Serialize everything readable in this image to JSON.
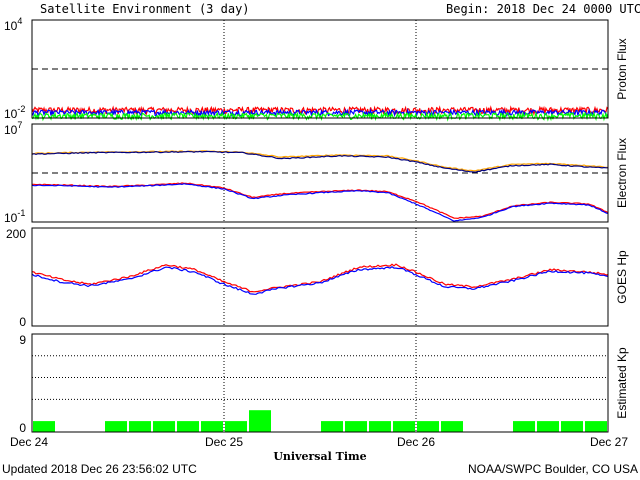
{
  "header": {
    "title": "Satellite Environment (3 day)",
    "begin": "Begin:  2018 Dec 24 0000 UTC"
  },
  "footer": {
    "updated": "Updated 2018 Dec 26 23:56:02 UTC",
    "credit": "NOAA/SWPC Boulder, CO USA",
    "xlabel": "Universal Time"
  },
  "colors": {
    "red": "#ff0000",
    "blue": "#0000ff",
    "green": "#00ff00",
    "orange": "#ffa500",
    "navy": "#000080",
    "grid": "#000000"
  },
  "chart_data": [
    {
      "type": "line",
      "ylabel": "Proton Flux",
      "scale": "log",
      "ylim_exp": [
        -2,
        4
      ],
      "y_ticks": [
        {
          "base": "10",
          "exp": "4"
        },
        {
          "base": "10",
          "exp": "-2"
        }
      ],
      "threshold": 10,
      "x_range_days": [
        0,
        3
      ],
      "series": [
        {
          "color": "red",
          "level": 0.031,
          "noise": 0.15
        },
        {
          "color": "blue",
          "level": 0.022,
          "noise": 0.12
        },
        {
          "color": "green",
          "level": 0.014,
          "noise": 0.14
        }
      ]
    },
    {
      "type": "line",
      "ylabel": "Electron Flux",
      "scale": "log",
      "ylim_exp": [
        -1,
        7
      ],
      "y_ticks": [
        {
          "base": "10",
          "exp": "7"
        },
        {
          "base": "10",
          "exp": "-1"
        }
      ],
      "threshold": 1000,
      "x_range_days": [
        0,
        3
      ],
      "series": [
        {
          "color": "orange",
          "x": [
            0,
            0.3,
            0.6,
            0.9,
            1.1,
            1.3,
            1.6,
            1.85,
            2.0,
            2.15,
            2.3,
            2.5,
            2.7,
            2.9,
            3.0
          ],
          "y": [
            40000,
            50000,
            55000,
            60000,
            50000,
            20000,
            30000,
            25000,
            10000,
            3000,
            1500,
            5000,
            6000,
            4000,
            3000
          ]
        },
        {
          "color": "navy",
          "x": [
            0,
            0.3,
            0.6,
            0.9,
            1.1,
            1.3,
            1.6,
            1.85,
            2.0,
            2.15,
            2.3,
            2.5,
            2.7,
            2.9,
            3.0
          ],
          "y": [
            35000,
            45000,
            50000,
            55000,
            45000,
            15000,
            25000,
            20000,
            8000,
            2500,
            1200,
            4000,
            5000,
            3000,
            2500
          ]
        },
        {
          "color": "red",
          "x": [
            0,
            0.2,
            0.4,
            0.6,
            0.8,
            1.0,
            1.15,
            1.3,
            1.5,
            1.7,
            1.85,
            2.0,
            2.1,
            2.2,
            2.35,
            2.5,
            2.7,
            2.9,
            3.0
          ],
          "y": [
            120,
            100,
            80,
            100,
            150,
            60,
            10,
            20,
            30,
            40,
            30,
            5,
            1,
            0.2,
            0.3,
            2,
            4,
            3,
            0.6
          ]
        },
        {
          "color": "blue",
          "x": [
            0,
            0.2,
            0.4,
            0.6,
            0.8,
            1.0,
            1.15,
            1.3,
            1.5,
            1.7,
            1.85,
            2.0,
            2.1,
            2.2,
            2.35,
            2.5,
            2.7,
            2.9,
            3.0
          ],
          "y": [
            100,
            90,
            70,
            90,
            130,
            50,
            8,
            15,
            25,
            35,
            25,
            3,
            0.6,
            0.12,
            0.25,
            1.8,
            3.5,
            2.5,
            0.5
          ]
        }
      ]
    },
    {
      "type": "line",
      "ylabel": "GOES Hp",
      "scale": "linear",
      "ylim": [
        0,
        200
      ],
      "y_ticks": [
        "200",
        "0"
      ],
      "x_range_days": [
        0,
        3
      ],
      "series": [
        {
          "color": "red",
          "x": [
            0,
            0.15,
            0.3,
            0.5,
            0.7,
            0.85,
            1.0,
            1.15,
            1.3,
            1.5,
            1.7,
            1.9,
            2.0,
            2.15,
            2.3,
            2.5,
            2.7,
            2.9,
            3.0
          ],
          "y": [
            110,
            95,
            85,
            100,
            125,
            115,
            90,
            70,
            80,
            90,
            120,
            125,
            110,
            85,
            80,
            95,
            115,
            110,
            105
          ]
        },
        {
          "color": "blue",
          "x": [
            0,
            0.15,
            0.3,
            0.5,
            0.7,
            0.85,
            1.0,
            1.15,
            1.3,
            1.5,
            1.7,
            1.9,
            2.0,
            2.15,
            2.3,
            2.5,
            2.7,
            2.9,
            3.0
          ],
          "y": [
            105,
            90,
            82,
            95,
            120,
            110,
            85,
            65,
            78,
            88,
            115,
            120,
            105,
            80,
            76,
            92,
            112,
            108,
            100
          ]
        }
      ]
    },
    {
      "type": "bar",
      "ylabel": "Estimated Kp",
      "ylim": [
        0,
        9
      ],
      "y_ticks": [
        "9",
        "0"
      ],
      "x_range_days": [
        0,
        3
      ],
      "color": "green",
      "values": [
        1,
        0,
        0,
        1,
        1,
        1,
        1,
        1,
        1,
        2,
        0,
        0,
        1,
        1,
        1,
        1,
        1,
        1,
        0,
        0,
        1,
        1,
        1,
        1
      ]
    }
  ],
  "x_ticks": [
    "Dec 24",
    "Dec 25",
    "Dec 26",
    "Dec 27"
  ]
}
